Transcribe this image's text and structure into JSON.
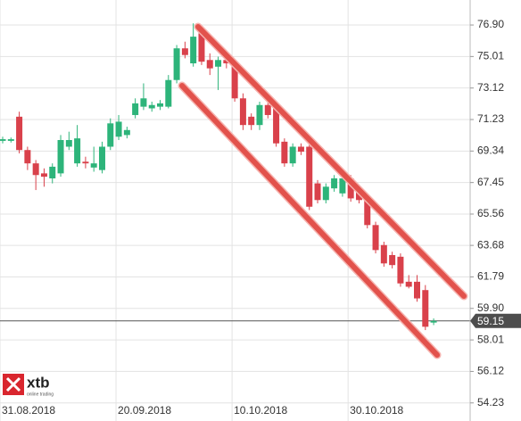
{
  "chart_data": {
    "type": "candlestick",
    "categories": [
      "31.08.2018",
      null,
      null,
      null,
      null,
      null,
      null,
      null,
      null,
      null,
      null,
      null,
      null,
      null,
      "20.09.2018",
      null,
      null,
      null,
      null,
      null,
      null,
      null,
      null,
      null,
      null,
      null,
      null,
      null,
      "10.10.2018",
      null,
      null,
      null,
      null,
      null,
      null,
      null,
      null,
      null,
      null,
      null,
      null,
      null,
      "30.10.2018",
      null,
      null,
      null,
      null,
      null,
      null,
      null,
      null,
      null,
      null
    ],
    "open": [
      69.95,
      69.95,
      71.4,
      69.4,
      68.6,
      68.0,
      67.7,
      68.0,
      69.6,
      68.6,
      68.7,
      68.35,
      68.2,
      69.6,
      70.2,
      70.3,
      71.5,
      72.0,
      71.9,
      72.0,
      72.0,
      73.6,
      75.5,
      74.6,
      76.4,
      74.8,
      74.4,
      74.8,
      74.5,
      72.5,
      71.4,
      70.9,
      72.1,
      72.0,
      69.9,
      68.6,
      69.6,
      69.6,
      67.4,
      66.4,
      67.1,
      66.8,
      67.7,
      67.0,
      66.5,
      64.9,
      63.7,
      63.1,
      63.0,
      61.5,
      61.5,
      61.0,
      59.05
    ],
    "high": [
      70.2,
      70.15,
      71.7,
      69.6,
      68.8,
      68.3,
      68.6,
      70.3,
      70.5,
      70.9,
      69.0,
      69.6,
      69.9,
      71.3,
      71.5,
      70.8,
      72.5,
      73.4,
      72.3,
      72.4,
      73.9,
      75.7,
      75.9,
      77.0,
      76.9,
      75.2,
      75.0,
      75.0,
      74.8,
      72.8,
      71.6,
      72.3,
      72.3,
      72.2,
      70.1,
      69.8,
      69.8,
      69.8,
      67.6,
      67.4,
      67.9,
      67.9,
      67.9,
      67.2,
      66.7,
      65.1,
      63.9,
      63.3,
      63.2,
      61.9,
      61.9,
      61.3,
      59.3
    ],
    "low": [
      69.8,
      69.85,
      69.2,
      68.2,
      67.0,
      67.2,
      67.4,
      67.8,
      69.4,
      68.4,
      68.3,
      68.1,
      68.0,
      69.4,
      70.0,
      70.1,
      71.3,
      71.8,
      71.7,
      71.8,
      71.9,
      73.4,
      74.9,
      74.4,
      74.5,
      73.9,
      73.0,
      74.3,
      72.3,
      70.6,
      70.6,
      70.6,
      71.3,
      69.6,
      68.4,
      68.4,
      69.1,
      65.8,
      66.2,
      66.2,
      66.9,
      66.6,
      66.3,
      66.2,
      64.7,
      63.2,
      62.4,
      62.3,
      61.2,
      61.1,
      60.3,
      58.6,
      58.9
    ],
    "close": [
      70.05,
      70.05,
      69.4,
      68.6,
      67.9,
      67.8,
      68.4,
      70.0,
      70.0,
      70.1,
      68.6,
      68.6,
      69.6,
      71.0,
      71.1,
      70.6,
      72.2,
      72.5,
      72.1,
      72.2,
      73.6,
      75.5,
      75.1,
      76.2,
      74.7,
      74.3,
      74.8,
      74.6,
      72.5,
      70.9,
      70.9,
      72.1,
      71.5,
      69.8,
      68.6,
      69.6,
      69.3,
      66.0,
      66.4,
      67.2,
      67.7,
      67.7,
      66.5,
      66.4,
      64.9,
      63.4,
      62.6,
      62.5,
      61.4,
      61.2,
      60.5,
      58.8,
      59.15
    ],
    "up_color": "#2db47a",
    "down_color": "#d9414b",
    "ylim": [
      53.2,
      78.4
    ],
    "yticks": [
      {
        "value": 54.23,
        "label": "54.23"
      },
      {
        "value": 56.12,
        "label": "56.12"
      },
      {
        "value": 58.01,
        "label": "58.01"
      },
      {
        "value": 59.9,
        "label": "59.90"
      },
      {
        "value": 61.79,
        "label": "61.79"
      },
      {
        "value": 63.68,
        "label": "63.68"
      },
      {
        "value": 65.56,
        "label": "65.56"
      },
      {
        "value": 67.45,
        "label": "67.45"
      },
      {
        "value": 69.34,
        "label": "69.34"
      },
      {
        "value": 71.23,
        "label": "71.23"
      },
      {
        "value": 73.12,
        "label": "73.12"
      },
      {
        "value": 75.01,
        "label": "75.01"
      },
      {
        "value": 76.9,
        "label": "76.90"
      }
    ],
    "grid": true,
    "last_price": 59.15,
    "logo_text": "xtb",
    "logo_tagline": "online trading"
  }
}
